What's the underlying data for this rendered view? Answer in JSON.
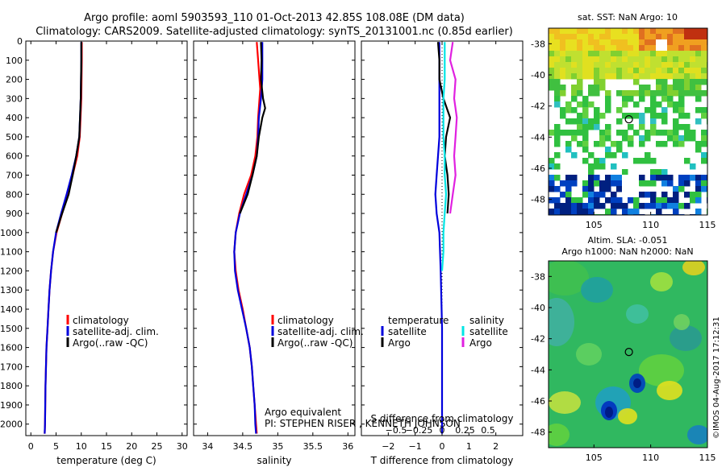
{
  "header": {
    "title_line1": "Argo profile: aoml 5903593_110 01-Oct-2013 42.85S 108.08E (DM data)",
    "title_line2": "Climatology: CARS2009. Satellite-adjusted climatology: synTS_20131001.nc (0.85d earlier)"
  },
  "colors": {
    "climatology": "#ff0000",
    "satellite": "#0000dd",
    "argo": "#000000",
    "sal_satellite": "#00e5e5",
    "sal_argo": "#e020e0"
  },
  "chart_data": [
    {
      "id": "temperature",
      "type": "line",
      "xlabel": "temperature (deg C)",
      "ylabel": "",
      "xlim": [
        -1,
        31
      ],
      "ylim": [
        2060,
        0
      ],
      "xticks": [
        0,
        5,
        10,
        15,
        20,
        25,
        30
      ],
      "xtick_labels": [
        "0",
        "5",
        "10",
        "15",
        "20",
        "25",
        "30"
      ],
      "yticks": [
        0,
        100,
        200,
        300,
        400,
        500,
        600,
        700,
        800,
        900,
        1000,
        1100,
        1200,
        1300,
        1400,
        1500,
        1600,
        1700,
        1800,
        1900,
        2000
      ],
      "ytick_labels": [
        "0",
        "100",
        "200",
        "300",
        "400",
        "500",
        "600",
        "700",
        "800",
        "900",
        "1000",
        "1100",
        "1200",
        "1300",
        "1400",
        "1500",
        "1600",
        "1700",
        "1800",
        "1900",
        "2000"
      ],
      "legend": [
        "climatology",
        "satellite-adj. clim.",
        "Argo(..raw -QC)"
      ],
      "series": [
        {
          "name": "climatology",
          "depth": [
            5,
            100,
            300,
            500,
            600,
            700,
            800,
            900,
            1000,
            1100,
            1200,
            1300,
            1400,
            1500,
            1600,
            1700,
            1800,
            1900,
            2000,
            2050
          ],
          "values": [
            10.1,
            10.1,
            10.0,
            9.7,
            9.2,
            8.3,
            7.3,
            6.2,
            5.1,
            4.4,
            4.0,
            3.7,
            3.5,
            3.3,
            3.1,
            3.0,
            2.9,
            2.85,
            2.8,
            2.75
          ]
        },
        {
          "name": "satellite",
          "depth": [
            5,
            100,
            300,
            500,
            600,
            700,
            800,
            900,
            1000,
            1100,
            1200,
            1300,
            1400,
            1500,
            1600,
            1700,
            1800,
            1900,
            2000,
            2050
          ],
          "values": [
            10.0,
            10.0,
            9.9,
            9.6,
            9.0,
            8.1,
            7.1,
            6.0,
            5.0,
            4.4,
            4.0,
            3.7,
            3.5,
            3.3,
            3.1,
            3.0,
            2.9,
            2.85,
            2.8,
            2.75
          ]
        },
        {
          "name": "Argo",
          "depth": [
            5,
            100,
            300,
            500,
            600,
            700,
            800,
            900,
            1000
          ],
          "values": [
            10.0,
            10.0,
            9.9,
            9.6,
            9.0,
            8.3,
            7.5,
            6.2,
            5.0
          ]
        }
      ]
    },
    {
      "id": "salinity",
      "type": "line",
      "xlabel": "salinity",
      "ylabel": "",
      "xlim": [
        33.8,
        36.1
      ],
      "ylim": [
        2060,
        0
      ],
      "xticks": [
        34,
        34.5,
        35,
        35.5,
        36
      ],
      "xtick_labels": [
        "34",
        "34.5",
        "35",
        "35.5",
        "36"
      ],
      "legend": [
        "climatology",
        "satellite-adj. clim.",
        "Argo(..raw -QC)"
      ],
      "annotations": [
        "Argo equivalent",
        "PI: STEPHEN RISER , KENNETH JOHNSON"
      ],
      "series": [
        {
          "name": "climatology",
          "depth": [
            5,
            100,
            200,
            250,
            300,
            400,
            500,
            600,
            700,
            800,
            900,
            1000,
            1100,
            1200,
            1300,
            1400,
            1500,
            1600,
            1700,
            1800,
            1900,
            2000,
            2050
          ],
          "values": [
            34.7,
            34.72,
            34.74,
            34.75,
            34.74,
            34.72,
            34.71,
            34.68,
            34.62,
            34.52,
            34.45,
            34.4,
            34.38,
            34.4,
            34.44,
            34.5,
            34.55,
            34.6,
            34.63,
            34.65,
            34.67,
            34.69,
            34.7
          ]
        },
        {
          "name": "satellite",
          "depth": [
            5,
            100,
            200,
            300,
            400,
            500,
            600,
            700,
            800,
            900,
            1000,
            1100,
            1200,
            1300,
            1400,
            1500,
            1600,
            1700,
            1800,
            1900,
            2000,
            2050
          ],
          "values": [
            34.78,
            34.78,
            34.78,
            34.76,
            34.73,
            34.72,
            34.7,
            34.64,
            34.55,
            34.46,
            34.4,
            34.38,
            34.39,
            34.43,
            34.49,
            34.55,
            34.6,
            34.63,
            34.65,
            34.67,
            34.68,
            34.69
          ]
        },
        {
          "name": "Argo",
          "depth": [
            5,
            100,
            200,
            300,
            350,
            400,
            500,
            600,
            700,
            800,
            900
          ],
          "values": [
            34.76,
            34.77,
            34.76,
            34.79,
            34.82,
            34.78,
            34.73,
            34.7,
            34.64,
            34.57,
            34.46
          ]
        }
      ]
    },
    {
      "id": "difference",
      "type": "line",
      "xlabel": "T difference from climatology",
      "xlabel_top": "S difference from climatology",
      "ylabel": "",
      "xlim": [
        -3,
        3
      ],
      "ylim": [
        2060,
        0
      ],
      "xticks": [
        -2,
        -1,
        0,
        1,
        2
      ],
      "xtick_labels": [
        "−2",
        "−1",
        "0",
        "1",
        "2"
      ],
      "top_tick_labels": [
        "−0.5",
        "−0.25",
        "0",
        "0.25",
        "0.5"
      ],
      "legend_headers": [
        "temperature",
        "salinity"
      ],
      "legend": [
        "satellite",
        "Argo",
        "satellite",
        "Argo"
      ],
      "series": [
        {
          "name": "T satellite",
          "depth": [
            5,
            100,
            200,
            300,
            400,
            500,
            600,
            700,
            800,
            900,
            1000,
            1200,
            1500,
            1800,
            2050
          ],
          "values": [
            -0.1,
            -0.1,
            -0.1,
            -0.1,
            -0.1,
            -0.1,
            -0.15,
            -0.2,
            -0.25,
            -0.2,
            -0.1,
            -0.05,
            0,
            0,
            0
          ]
        },
        {
          "name": "T Argo",
          "depth": [
            5,
            100,
            200,
            300,
            400,
            500,
            600,
            700,
            800,
            900
          ],
          "values": [
            -0.15,
            -0.1,
            -0.1,
            0.05,
            0.3,
            0.15,
            0.1,
            0.2,
            0.25,
            0.2
          ]
        },
        {
          "name": "S satellite",
          "depth": [
            5,
            100,
            200,
            300,
            400,
            500,
            600,
            700,
            800,
            900,
            1000,
            1100,
            1200
          ],
          "values": [
            0.1,
            0.1,
            0.1,
            0.05,
            0.05,
            0.05,
            0.1,
            0.1,
            0.15,
            0.1,
            0.05,
            0.05,
            0
          ]
        },
        {
          "name": "S Argo",
          "depth": [
            5,
            100,
            200,
            300,
            400,
            500,
            600,
            700,
            800,
            900
          ],
          "values": [
            0.4,
            0.3,
            0.5,
            0.45,
            0.55,
            0.5,
            0.45,
            0.5,
            0.4,
            0.3
          ]
        }
      ]
    },
    {
      "id": "sst_map",
      "type": "heatmap",
      "title": "sat. SST: NaN Argo: 10",
      "xlim": [
        101,
        115
      ],
      "ylim": [
        -49,
        -37
      ],
      "xticks": [
        105,
        110,
        115
      ],
      "xtick_labels": [
        "105",
        "110",
        "115"
      ],
      "yticks": [
        -38,
        -40,
        -42,
        -44,
        -46,
        -48
      ],
      "ytick_labels": [
        "-38",
        "-40",
        "-42",
        "-44",
        "-46",
        "-48"
      ],
      "marker": {
        "lon": 108.08,
        "lat": -42.85
      }
    },
    {
      "id": "sla_map",
      "type": "heatmap",
      "title_line1": "Altim. SLA: -0.051",
      "title_line2": "Argo h1000: NaN h2000: NaN",
      "xlim": [
        101,
        115
      ],
      "ylim": [
        -49,
        -37
      ],
      "xticks": [
        105,
        110,
        115
      ],
      "xtick_labels": [
        "105",
        "110",
        "115"
      ],
      "yticks": [
        -38,
        -40,
        -42,
        -44,
        -46,
        -48
      ],
      "ytick_labels": [
        "-38",
        "-40",
        "-42",
        "-44",
        "-46",
        "-48"
      ],
      "marker": {
        "lon": 108.08,
        "lat": -42.85
      }
    }
  ],
  "stamp": "©IMOS 04-Aug-2017 17:12:31"
}
